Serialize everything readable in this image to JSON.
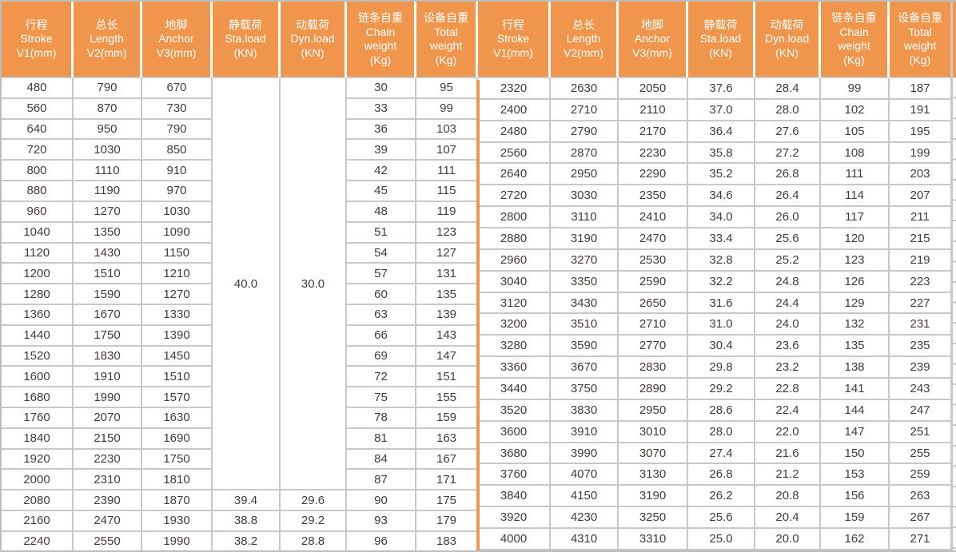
{
  "chart_data": {
    "type": "table",
    "title": "",
    "header_columns": [
      {
        "lines": [
          "行程",
          "Stroke",
          "V1(mm)"
        ]
      },
      {
        "lines": [
          "总长",
          "Length",
          "V2(mm)"
        ]
      },
      {
        "lines": [
          "地脚",
          "Anchor",
          "V3(mm)"
        ]
      },
      {
        "lines": [
          "静载荷",
          "Sta.load",
          "(KN)"
        ]
      },
      {
        "lines": [
          "动载荷",
          "Dyn.load",
          "(KN)"
        ]
      },
      {
        "lines": [
          "链条自重",
          "Chain",
          "weight",
          "(Kg)"
        ]
      },
      {
        "lines": [
          "设备自重",
          "Total",
          "weight",
          "(Kg)"
        ]
      }
    ],
    "header_repeated_for_right_half": true,
    "left_half": {
      "merged_cells": {
        "sta_load_kn": "40.0",
        "dyn_load_kn": "30.0",
        "row_span": 20
      },
      "rows": [
        [
          "480",
          "790",
          "670",
          null,
          null,
          "30",
          "95"
        ],
        [
          "560",
          "870",
          "730",
          null,
          null,
          "33",
          "99"
        ],
        [
          "640",
          "950",
          "790",
          null,
          null,
          "36",
          "103"
        ],
        [
          "720",
          "1030",
          "850",
          null,
          null,
          "39",
          "107"
        ],
        [
          "800",
          "1110",
          "910",
          null,
          null,
          "42",
          "111"
        ],
        [
          "880",
          "1190",
          "970",
          null,
          null,
          "45",
          "115"
        ],
        [
          "960",
          "1270",
          "1030",
          null,
          null,
          "48",
          "119"
        ],
        [
          "1040",
          "1350",
          "1090",
          null,
          null,
          "51",
          "123"
        ],
        [
          "1120",
          "1430",
          "1150",
          null,
          null,
          "54",
          "127"
        ],
        [
          "1200",
          "1510",
          "1210",
          null,
          null,
          "57",
          "131"
        ],
        [
          "1280",
          "1590",
          "1270",
          null,
          null,
          "60",
          "135"
        ],
        [
          "1360",
          "1670",
          "1330",
          null,
          null,
          "63",
          "139"
        ],
        [
          "1440",
          "1750",
          "1390",
          null,
          null,
          "66",
          "143"
        ],
        [
          "1520",
          "1830",
          "1450",
          null,
          null,
          "69",
          "147"
        ],
        [
          "1600",
          "1910",
          "1510",
          null,
          null,
          "72",
          "151"
        ],
        [
          "1680",
          "1990",
          "1570",
          null,
          null,
          "75",
          "155"
        ],
        [
          "1760",
          "2070",
          "1630",
          null,
          null,
          "78",
          "159"
        ],
        [
          "1840",
          "2150",
          "1690",
          null,
          null,
          "81",
          "163"
        ],
        [
          "1920",
          "2230",
          "1750",
          null,
          null,
          "84",
          "167"
        ],
        [
          "2000",
          "2310",
          "1810",
          null,
          null,
          "87",
          "171"
        ],
        [
          "2080",
          "2390",
          "1870",
          "39.4",
          "29.6",
          "90",
          "175"
        ],
        [
          "2160",
          "2470",
          "1930",
          "38.8",
          "29.2",
          "93",
          "179"
        ],
        [
          "2240",
          "2550",
          "1990",
          "38.2",
          "28.8",
          "96",
          "183"
        ]
      ]
    },
    "right_half": {
      "rows": [
        [
          "2320",
          "2630",
          "2050",
          "37.6",
          "28.4",
          "99",
          "187"
        ],
        [
          "2400",
          "2710",
          "2110",
          "37.0",
          "28.0",
          "102",
          "191"
        ],
        [
          "2480",
          "2790",
          "2170",
          "36.4",
          "27.6",
          "105",
          "195"
        ],
        [
          "2560",
          "2870",
          "2230",
          "35.8",
          "27.2",
          "108",
          "199"
        ],
        [
          "2640",
          "2950",
          "2290",
          "35.2",
          "26.8",
          "111",
          "203"
        ],
        [
          "2720",
          "3030",
          "2350",
          "34.6",
          "26.4",
          "114",
          "207"
        ],
        [
          "2800",
          "3110",
          "2410",
          "34.0",
          "26.0",
          "117",
          "211"
        ],
        [
          "2880",
          "3190",
          "2470",
          "33.4",
          "25.6",
          "120",
          "215"
        ],
        [
          "2960",
          "3270",
          "2530",
          "32.8",
          "25.2",
          "123",
          "219"
        ],
        [
          "3040",
          "3350",
          "2590",
          "32.2",
          "24.8",
          "126",
          "223"
        ],
        [
          "3120",
          "3430",
          "2650",
          "31.6",
          "24.4",
          "129",
          "227"
        ],
        [
          "3200",
          "3510",
          "2710",
          "31.0",
          "24.0",
          "132",
          "231"
        ],
        [
          "3280",
          "3590",
          "2770",
          "30.4",
          "23.6",
          "135",
          "235"
        ],
        [
          "3360",
          "3670",
          "2830",
          "29.8",
          "23.2",
          "138",
          "239"
        ],
        [
          "3440",
          "3750",
          "2890",
          "29.2",
          "22.8",
          "141",
          "243"
        ],
        [
          "3520",
          "3830",
          "2950",
          "28.6",
          "22.4",
          "144",
          "247"
        ],
        [
          "3600",
          "3910",
          "3010",
          "28.0",
          "22.0",
          "147",
          "251"
        ],
        [
          "3680",
          "3990",
          "3070",
          "27.4",
          "21.6",
          "150",
          "255"
        ],
        [
          "3760",
          "4070",
          "3130",
          "26.8",
          "21.2",
          "153",
          "259"
        ],
        [
          "3840",
          "4150",
          "3190",
          "26.2",
          "20.8",
          "156",
          "263"
        ],
        [
          "3920",
          "4230",
          "3250",
          "25.6",
          "20.4",
          "159",
          "267"
        ],
        [
          "4000",
          "4310",
          "3310",
          "25.0",
          "20.0",
          "162",
          "271"
        ]
      ],
      "trailing_empty_row": true
    }
  },
  "colors": {
    "header_bg": "#F0954C",
    "header_text": "#FFFFFF",
    "grid_line": "#C8C8C8",
    "outer_border": "#BDBDBD",
    "divider": "#F0954C",
    "cell_text": "#433B3A",
    "cell_bg": "#FFFFFF"
  }
}
